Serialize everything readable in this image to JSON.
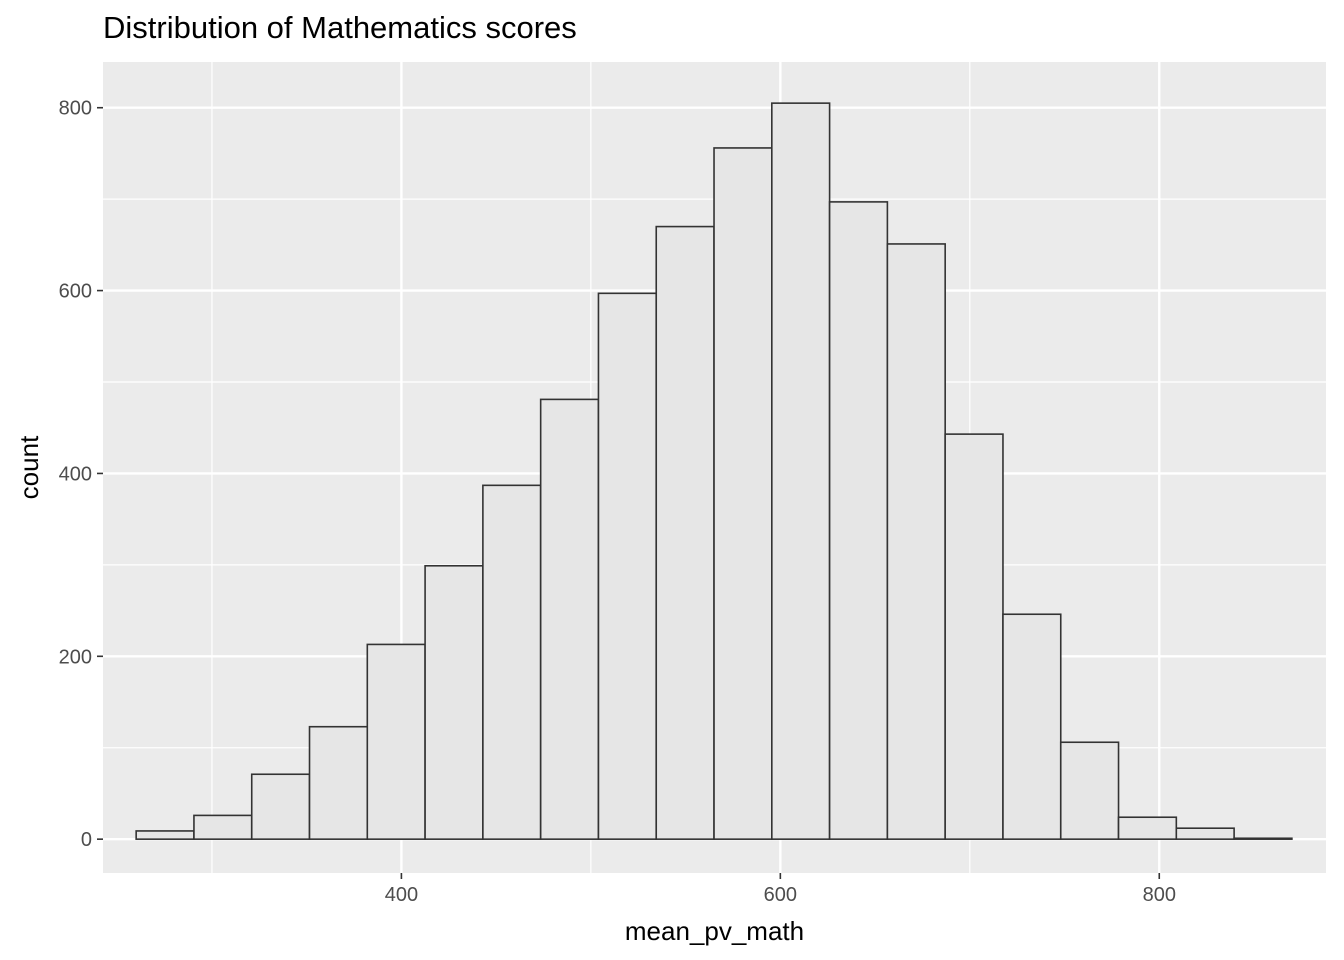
{
  "chart_data": {
    "type": "bar",
    "title": "Distribution of Mathematics scores",
    "xlabel": "mean_pv_math",
    "ylabel": "count",
    "xlim": [
      242.5,
      888
    ],
    "ylim": [
      -37,
      850
    ],
    "x_ticks": [
      400,
      600,
      800
    ],
    "x_minor_ticks": [
      300,
      500,
      700
    ],
    "y_ticks": [
      0,
      200,
      400,
      600,
      800
    ],
    "y_minor_ticks": [
      100,
      300,
      500,
      700
    ],
    "grid": true,
    "legend": "none",
    "bins": [
      {
        "x0": 260,
        "x1": 290.5,
        "count": 9
      },
      {
        "x0": 290.5,
        "x1": 321,
        "count": 26
      },
      {
        "x0": 321,
        "x1": 351.5,
        "count": 71
      },
      {
        "x0": 351.5,
        "x1": 382,
        "count": 123
      },
      {
        "x0": 382,
        "x1": 412.5,
        "count": 213
      },
      {
        "x0": 412.5,
        "x1": 443,
        "count": 299
      },
      {
        "x0": 443,
        "x1": 473.5,
        "count": 387
      },
      {
        "x0": 473.5,
        "x1": 504,
        "count": 481
      },
      {
        "x0": 504,
        "x1": 534.5,
        "count": 597
      },
      {
        "x0": 534.5,
        "x1": 565,
        "count": 670
      },
      {
        "x0": 565,
        "x1": 595.5,
        "count": 756
      },
      {
        "x0": 595.5,
        "x1": 626,
        "count": 805
      },
      {
        "x0": 626,
        "x1": 656.5,
        "count": 697
      },
      {
        "x0": 656.5,
        "x1": 687,
        "count": 651
      },
      {
        "x0": 687,
        "x1": 717.5,
        "count": 443
      },
      {
        "x0": 717.5,
        "x1": 748,
        "count": 246
      },
      {
        "x0": 748,
        "x1": 778.5,
        "count": 106
      },
      {
        "x0": 778.5,
        "x1": 809,
        "count": 24
      },
      {
        "x0": 809,
        "x1": 839.5,
        "count": 12
      },
      {
        "x0": 839.5,
        "x1": 870,
        "count": 1
      }
    ]
  },
  "colors": {
    "panel_background": "#ebebeb",
    "grid_major": "#ffffff",
    "bar_fill": "#e6e6e6",
    "bar_outline": "#333333",
    "tick_text": "#4d4d4d",
    "axis_text": "#000000"
  }
}
